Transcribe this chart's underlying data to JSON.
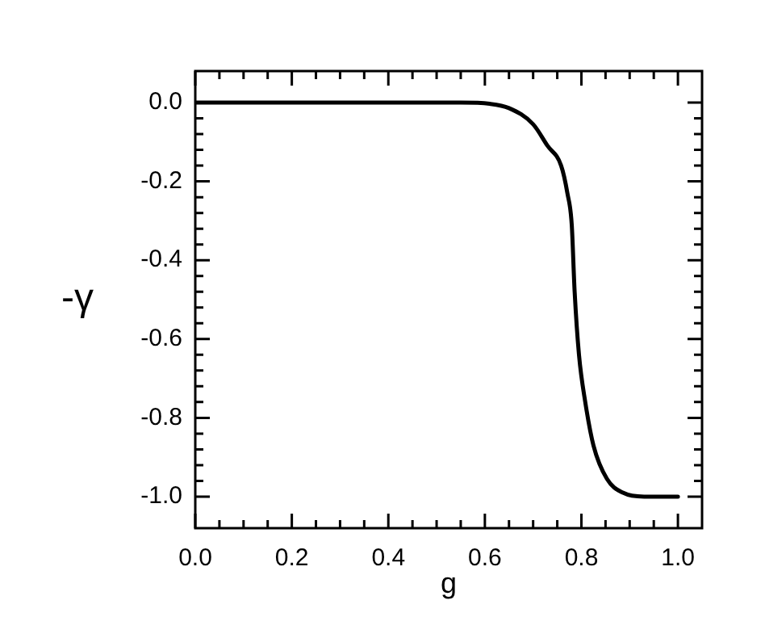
{
  "chart_data": {
    "type": "line",
    "xlabel": "g",
    "ylabel": "-γ",
    "xlim": [
      0,
      1.05
    ],
    "ylim": [
      -1.08,
      0.08
    ],
    "xticks": [
      {
        "value": 0,
        "label": "0.0"
      },
      {
        "value": 0.05,
        "label": null
      },
      {
        "value": 0.1,
        "label": null
      },
      {
        "value": 0.15,
        "label": null
      },
      {
        "value": 0.2,
        "label": "0.2"
      },
      {
        "value": 0.25,
        "label": null
      },
      {
        "value": 0.3,
        "label": null
      },
      {
        "value": 0.35,
        "label": null
      },
      {
        "value": 0.4,
        "label": "0.4"
      },
      {
        "value": 0.45,
        "label": null
      },
      {
        "value": 0.5,
        "label": null
      },
      {
        "value": 0.55,
        "label": null
      },
      {
        "value": 0.6,
        "label": "0.6"
      },
      {
        "value": 0.65,
        "label": null
      },
      {
        "value": 0.7,
        "label": null
      },
      {
        "value": 0.75,
        "label": null
      },
      {
        "value": 0.8,
        "label": "0.8"
      },
      {
        "value": 0.85,
        "label": null
      },
      {
        "value": 0.9,
        "label": null
      },
      {
        "value": 0.95,
        "label": null
      },
      {
        "value": 1,
        "label": "1.0"
      }
    ],
    "yticks": [
      {
        "value": 0,
        "label": "0.0"
      },
      {
        "value": -0.04,
        "label": null
      },
      {
        "value": -0.08,
        "label": null
      },
      {
        "value": -0.12,
        "label": null
      },
      {
        "value": -0.16,
        "label": null
      },
      {
        "value": -0.2,
        "label": "-0.2"
      },
      {
        "value": -0.24,
        "label": null
      },
      {
        "value": -0.28,
        "label": null
      },
      {
        "value": -0.32,
        "label": null
      },
      {
        "value": -0.36,
        "label": null
      },
      {
        "value": -0.4,
        "label": "-0.4"
      },
      {
        "value": -0.44,
        "label": null
      },
      {
        "value": -0.48,
        "label": null
      },
      {
        "value": -0.52,
        "label": null
      },
      {
        "value": -0.56,
        "label": null
      },
      {
        "value": -0.6,
        "label": "-0.6"
      },
      {
        "value": -0.64,
        "label": null
      },
      {
        "value": -0.68,
        "label": null
      },
      {
        "value": -0.72,
        "label": null
      },
      {
        "value": -0.76,
        "label": null
      },
      {
        "value": -0.8,
        "label": "-0.8"
      },
      {
        "value": -0.84,
        "label": null
      },
      {
        "value": -0.88,
        "label": null
      },
      {
        "value": -0.92,
        "label": null
      },
      {
        "value": -0.96,
        "label": null
      },
      {
        "value": -1,
        "label": "-1.0"
      }
    ],
    "grid": false,
    "marker": "none",
    "line_style": "solid",
    "series": [
      {
        "color": "#000000",
        "x": [
          0,
          0.2,
          0.4,
          0.55,
          0.61,
          0.65,
          0.7,
          0.73,
          0.758,
          0.771,
          0.78,
          0.786,
          0.795,
          0.808,
          0.825,
          0.853,
          0.886,
          0.93,
          1
        ],
        "values": [
          0,
          0,
          0,
          0,
          -0.003,
          -0.014,
          -0.055,
          -0.11,
          -0.16,
          -0.23,
          -0.31,
          -0.48,
          -0.64,
          -0.76,
          -0.87,
          -0.955,
          -0.99,
          -1,
          -1
        ]
      }
    ]
  }
}
